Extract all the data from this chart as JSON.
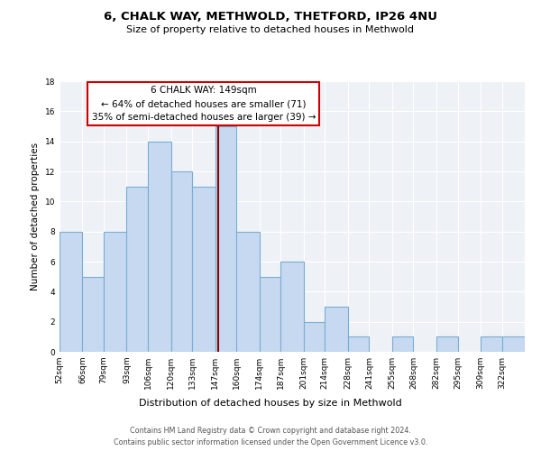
{
  "title": "6, CHALK WAY, METHWOLD, THETFORD, IP26 4NU",
  "subtitle": "Size of property relative to detached houses in Methwold",
  "xlabel": "Distribution of detached houses by size in Methwold",
  "ylabel": "Number of detached properties",
  "bin_labels": [
    "52sqm",
    "66sqm",
    "79sqm",
    "93sqm",
    "106sqm",
    "120sqm",
    "133sqm",
    "147sqm",
    "160sqm",
    "174sqm",
    "187sqm",
    "201sqm",
    "214sqm",
    "228sqm",
    "241sqm",
    "255sqm",
    "268sqm",
    "282sqm",
    "295sqm",
    "309sqm",
    "322sqm"
  ],
  "bin_edges": [
    52,
    66,
    79,
    93,
    106,
    120,
    133,
    147,
    160,
    174,
    187,
    201,
    214,
    228,
    241,
    255,
    268,
    282,
    295,
    309,
    322,
    336
  ],
  "heights": [
    8,
    5,
    8,
    11,
    14,
    12,
    11,
    15,
    8,
    5,
    6,
    2,
    3,
    1,
    0,
    1,
    0,
    1,
    0,
    1,
    1
  ],
  "bar_facecolor": "#c6d9f0",
  "bar_edgecolor": "#7aadd4",
  "property_line_x": 149,
  "property_line_color": "#8b0000",
  "annotation_title": "6 CHALK WAY: 149sqm",
  "annotation_line1": "← 64% of detached houses are smaller (71)",
  "annotation_line2": "35% of semi-detached houses are larger (39) →",
  "annotation_box_facecolor": "#ffffff",
  "annotation_box_edgecolor": "#cc0000",
  "ylim": [
    0,
    18
  ],
  "yticks": [
    0,
    2,
    4,
    6,
    8,
    10,
    12,
    14,
    16,
    18
  ],
  "background_color": "#eef2f7",
  "footer_line1": "Contains HM Land Registry data © Crown copyright and database right 2024.",
  "footer_line2": "Contains public sector information licensed under the Open Government Licence v3.0."
}
